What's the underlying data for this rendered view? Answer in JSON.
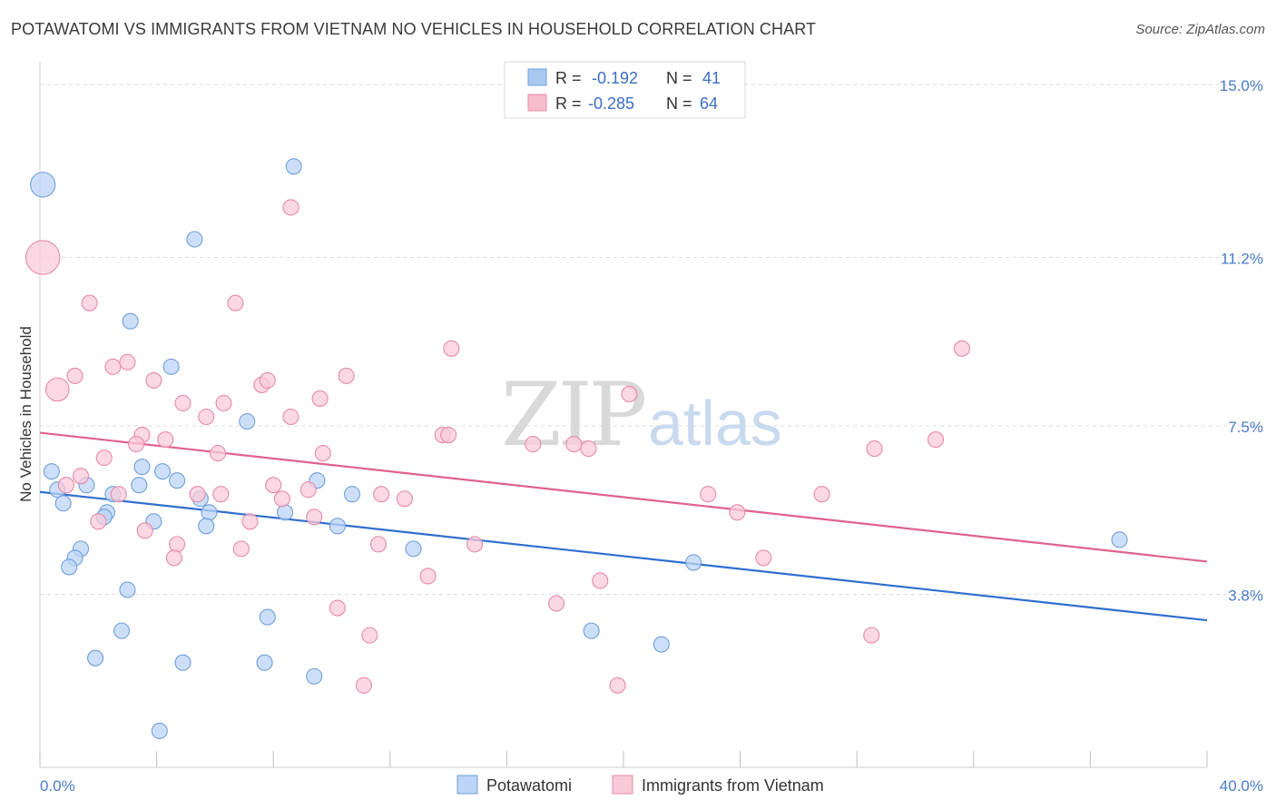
{
  "title": "POTAWATOMI VS IMMIGRANTS FROM VIETNAM NO VEHICLES IN HOUSEHOLD CORRELATION CHART",
  "source": "Source: ZipAtlas.com",
  "watermark": {
    "left": "ZIP",
    "right": "atlas"
  },
  "legend": {
    "rows": [
      {
        "r_label": "R =",
        "r_value": "-0.192",
        "n_label": "N =",
        "n_value": "41",
        "color": "#a9c8f0",
        "stroke": "#6f9fdc"
      },
      {
        "r_label": "R =",
        "r_value": "-0.285",
        "n_label": "N =",
        "n_value": "64",
        "color": "#f7bccd",
        "stroke": "#e88aa8"
      }
    ]
  },
  "bottom_legend": [
    {
      "label": "Potawatomi",
      "color": "#bcd4f5",
      "stroke": "#6f9fdc"
    },
    {
      "label": "Immigrants from Vietnam",
      "color": "#f9cbd9",
      "stroke": "#e88aa8"
    }
  ],
  "chart_data": {
    "type": "scatter",
    "title": "POTAWATOMI VS IMMIGRANTS FROM VIETNAM NO VEHICLES IN HOUSEHOLD CORRELATION CHART",
    "xlabel": "",
    "ylabel": "No Vehicles in Household",
    "xlim": [
      0,
      40
    ],
    "ylim": [
      0,
      15.5
    ],
    "x_tick_labels": [
      "0.0%",
      "40.0%"
    ],
    "y_ticks": [
      3.8,
      7.5,
      11.2,
      15.0
    ],
    "y_tick_labels": [
      "3.8%",
      "7.5%",
      "11.2%",
      "15.0%"
    ],
    "grid": true,
    "legend_position": "top-center",
    "series": [
      {
        "name": "Potawatomi",
        "color": "#6f9fdc",
        "fill": "#bcd4f5",
        "line_color": "#2f6fd0",
        "trend": {
          "x": [
            0,
            40
          ],
          "y": [
            6.05,
            3.23
          ]
        },
        "points": [
          [
            0.1,
            12.8,
            1.6
          ],
          [
            8.7,
            13.2,
            1
          ],
          [
            5.3,
            11.6,
            1
          ],
          [
            3.1,
            9.8,
            1
          ],
          [
            4.5,
            8.8,
            1
          ],
          [
            7.1,
            7.6,
            1
          ],
          [
            0.4,
            6.5,
            1
          ],
          [
            0.6,
            6.1,
            1
          ],
          [
            1.6,
            6.2,
            1
          ],
          [
            3.5,
            6.6,
            1
          ],
          [
            4.2,
            6.5,
            1
          ],
          [
            4.7,
            6.3,
            1
          ],
          [
            3.4,
            6.2,
            1
          ],
          [
            2.5,
            6.0,
            1
          ],
          [
            5.5,
            5.9,
            1
          ],
          [
            0.8,
            5.8,
            1
          ],
          [
            2.3,
            5.6,
            1
          ],
          [
            2.2,
            5.5,
            1
          ],
          [
            3.9,
            5.4,
            1
          ],
          [
            5.8,
            5.6,
            1
          ],
          [
            5.7,
            5.3,
            1
          ],
          [
            8.4,
            5.6,
            1
          ],
          [
            9.5,
            6.3,
            1
          ],
          [
            10.7,
            6.0,
            1
          ],
          [
            10.2,
            5.3,
            1
          ],
          [
            12.8,
            4.8,
            1
          ],
          [
            1.4,
            4.8,
            1
          ],
          [
            1.2,
            4.6,
            1
          ],
          [
            1.0,
            4.4,
            1
          ],
          [
            3.0,
            3.9,
            1
          ],
          [
            7.8,
            3.3,
            1
          ],
          [
            2.8,
            3.0,
            1
          ],
          [
            18.9,
            3.0,
            1
          ],
          [
            21.3,
            2.7,
            1
          ],
          [
            1.9,
            2.4,
            1
          ],
          [
            4.9,
            2.3,
            1
          ],
          [
            7.7,
            2.3,
            1
          ],
          [
            9.4,
            2.0,
            1
          ],
          [
            4.1,
            0.8,
            1
          ],
          [
            37.0,
            5.0,
            1
          ],
          [
            22.4,
            4.5,
            1
          ]
        ]
      },
      {
        "name": "Immigrants from Vietnam",
        "color": "#e88aa8",
        "fill": "#f9cbd9",
        "line_color": "#e0628c",
        "trend": {
          "x": [
            0,
            40
          ],
          "y": [
            7.35,
            4.52
          ]
        },
        "points": [
          [
            0.1,
            11.2,
            2.2
          ],
          [
            8.6,
            12.3,
            1
          ],
          [
            1.7,
            10.2,
            1
          ],
          [
            6.7,
            10.2,
            1
          ],
          [
            0.6,
            8.3,
            1.5
          ],
          [
            1.2,
            8.6,
            1
          ],
          [
            2.5,
            8.8,
            1
          ],
          [
            3.0,
            8.9,
            1
          ],
          [
            3.9,
            8.5,
            1
          ],
          [
            4.9,
            8.0,
            1
          ],
          [
            5.7,
            7.7,
            1
          ],
          [
            6.3,
            8.0,
            1
          ],
          [
            7.6,
            8.4,
            1
          ],
          [
            7.8,
            8.5,
            1
          ],
          [
            8.6,
            7.7,
            1
          ],
          [
            9.6,
            8.1,
            1
          ],
          [
            10.5,
            8.6,
            1
          ],
          [
            14.1,
            9.2,
            1
          ],
          [
            20.2,
            8.2,
            1
          ],
          [
            31.6,
            9.2,
            1
          ],
          [
            3.5,
            7.3,
            1
          ],
          [
            4.3,
            7.2,
            1
          ],
          [
            13.8,
            7.3,
            1
          ],
          [
            14.0,
            7.3,
            1
          ],
          [
            16.9,
            7.1,
            1
          ],
          [
            18.3,
            7.1,
            1
          ],
          [
            18.8,
            7.0,
            1
          ],
          [
            28.6,
            7.0,
            1
          ],
          [
            30.7,
            7.2,
            1
          ],
          [
            3.3,
            7.1,
            1
          ],
          [
            6.1,
            6.9,
            1
          ],
          [
            9.7,
            6.9,
            1
          ],
          [
            2.2,
            6.8,
            1
          ],
          [
            1.4,
            6.4,
            1
          ],
          [
            0.9,
            6.2,
            1
          ],
          [
            2.7,
            6.0,
            1
          ],
          [
            5.4,
            6.0,
            1
          ],
          [
            6.2,
            6.0,
            1
          ],
          [
            8.0,
            6.2,
            1
          ],
          [
            9.2,
            6.1,
            1
          ],
          [
            11.7,
            6.0,
            1
          ],
          [
            12.5,
            5.9,
            1
          ],
          [
            22.9,
            6.0,
            1
          ],
          [
            26.8,
            6.0,
            1
          ],
          [
            2.0,
            5.4,
            1
          ],
          [
            8.3,
            5.9,
            1
          ],
          [
            9.4,
            5.5,
            1
          ],
          [
            23.9,
            5.6,
            1
          ],
          [
            3.6,
            5.2,
            1
          ],
          [
            7.2,
            5.4,
            1
          ],
          [
            4.7,
            4.9,
            1
          ],
          [
            6.9,
            4.8,
            1
          ],
          [
            11.6,
            4.9,
            1
          ],
          [
            4.6,
            4.6,
            1
          ],
          [
            14.9,
            4.9,
            1
          ],
          [
            24.8,
            4.6,
            1
          ],
          [
            13.3,
            4.2,
            1
          ],
          [
            19.2,
            4.1,
            1
          ],
          [
            10.2,
            3.5,
            1
          ],
          [
            17.7,
            3.6,
            1
          ],
          [
            11.3,
            2.9,
            1
          ],
          [
            28.5,
            2.9,
            1
          ],
          [
            11.1,
            1.8,
            1
          ],
          [
            19.8,
            1.8,
            1
          ]
        ]
      }
    ]
  }
}
